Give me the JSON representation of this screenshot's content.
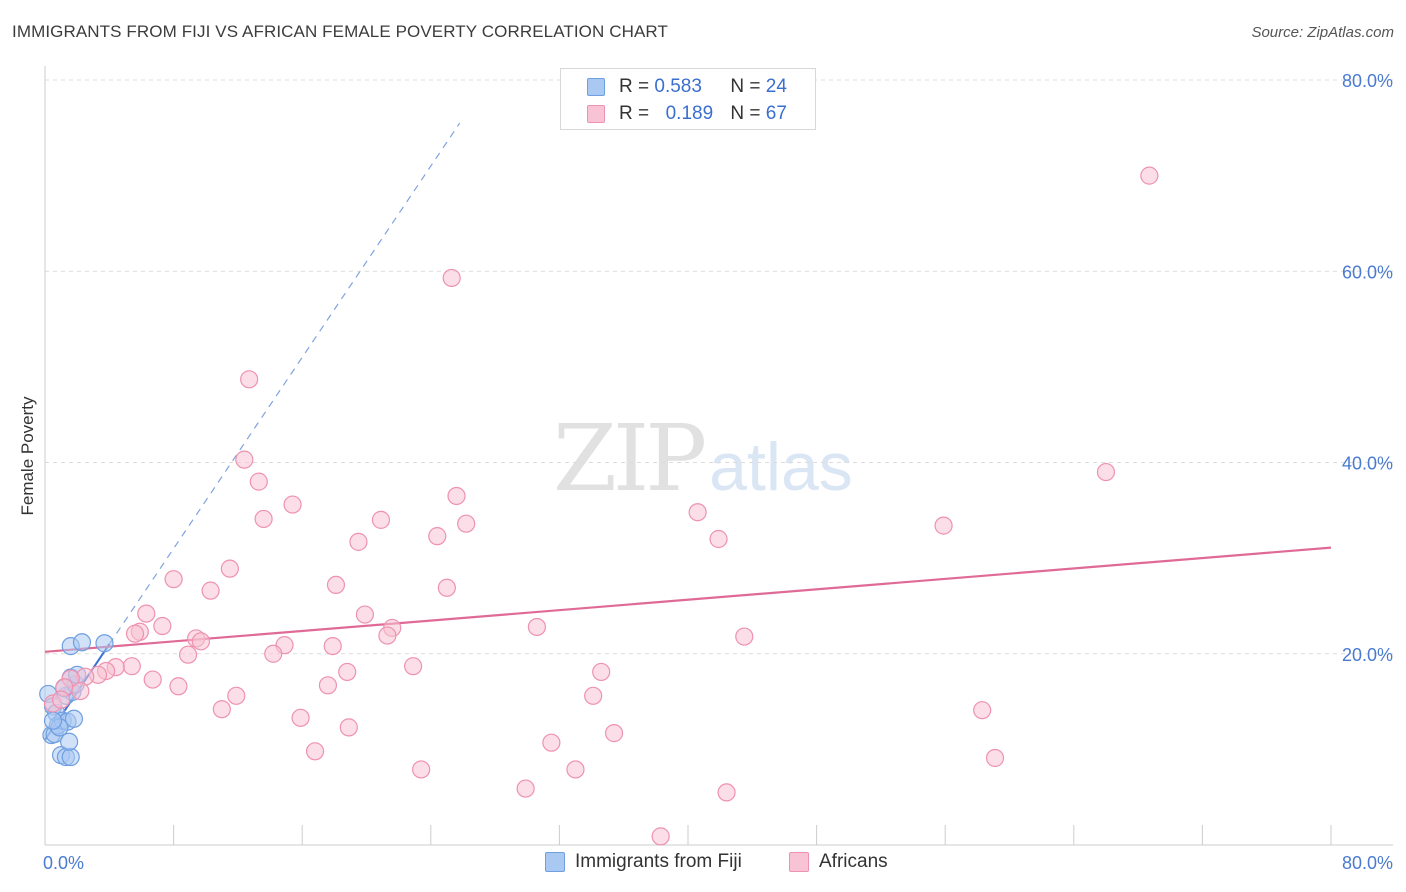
{
  "title": "IMMIGRANTS FROM FIJI VS AFRICAN FEMALE POVERTY CORRELATION CHART",
  "source": "Source: ZipAtlas.com",
  "watermark": {
    "zip": "ZIP",
    "atlas": "atlas"
  },
  "legend": {
    "rows": [
      {
        "r_label": "R =",
        "r_value": "0.583",
        "n_label": "N =",
        "n_value": "24",
        "color": "#a9c8f2",
        "border": "#6f9fe0"
      },
      {
        "r_label": "R =",
        "r_value": "0.189",
        "n_label": "N =",
        "n_value": "67",
        "color": "#f8c3d4",
        "border": "#ee92b0"
      }
    ]
  },
  "bottom_legend": [
    {
      "label": "Immigrants from Fiji",
      "color": "#a9c8f2",
      "border": "#6f9fe0"
    },
    {
      "label": "Africans",
      "color": "#f8c3d4",
      "border": "#ee92b0"
    }
  ],
  "chart_data": {
    "type": "scatter",
    "title": "IMMIGRANTS FROM FIJI VS AFRICAN FEMALE POVERTY CORRELATION CHART",
    "xlabel": "",
    "ylabel": "Female Poverty",
    "xlim": [
      0,
      80
    ],
    "ylim": [
      0,
      80
    ],
    "x_tick_labels": [
      "0.0%",
      "80.0%"
    ],
    "y_ticks": [
      20,
      40,
      60,
      80
    ],
    "y_tick_labels": [
      "20.0%",
      "40.0%",
      "60.0%",
      "80.0%"
    ],
    "grid": "horizontal dashed",
    "legend_position": "top-center",
    "series": [
      {
        "name": "Immigrants from Fiji",
        "color": "#6f9fe0",
        "fill": "#a9c8f2",
        "trend_color": "#3a6fd6",
        "trend": {
          "x1": 0,
          "y1": 11.0,
          "x2": 4.0,
          "y2": 21.0,
          "dashed_to_x": 25.8
        },
        "points": [
          [
            0.2,
            15.8
          ],
          [
            0.5,
            14.5
          ],
          [
            0.7,
            13.8
          ],
          [
            0.4,
            11.5
          ],
          [
            0.6,
            11.6
          ],
          [
            0.8,
            12.5
          ],
          [
            1.1,
            13.0
          ],
          [
            1.4,
            12.9
          ],
          [
            1.0,
            9.4
          ],
          [
            1.3,
            9.2
          ],
          [
            1.6,
            9.2
          ],
          [
            1.5,
            10.8
          ],
          [
            1.8,
            13.2
          ],
          [
            1.3,
            15.6
          ],
          [
            1.7,
            16.0
          ],
          [
            1.2,
            16.4
          ],
          [
            1.9,
            16.8
          ],
          [
            1.6,
            17.5
          ],
          [
            2.0,
            17.8
          ],
          [
            1.6,
            20.8
          ],
          [
            2.3,
            21.2
          ],
          [
            3.7,
            21.1
          ],
          [
            0.9,
            12.3
          ],
          [
            0.5,
            13.0
          ]
        ]
      },
      {
        "name": "Africans",
        "color": "#ee92b0",
        "fill": "#f8c3d4",
        "trend_color": "#e06a96",
        "trend": {
          "x1": 0,
          "y1": 20.2,
          "x2": 80,
          "y2": 31.1
        },
        "points": [
          [
            68.7,
            70.0
          ],
          [
            25.3,
            59.3
          ],
          [
            12.7,
            48.7
          ],
          [
            12.4,
            40.3
          ],
          [
            13.3,
            38.0
          ],
          [
            15.4,
            35.6
          ],
          [
            13.6,
            34.1
          ],
          [
            20.9,
            34.0
          ],
          [
            19.5,
            31.7
          ],
          [
            25.6,
            36.5
          ],
          [
            26.2,
            33.6
          ],
          [
            24.4,
            32.3
          ],
          [
            40.6,
            34.8
          ],
          [
            41.9,
            32.0
          ],
          [
            55.9,
            33.4
          ],
          [
            66.0,
            39.0
          ],
          [
            8.0,
            27.8
          ],
          [
            11.5,
            28.9
          ],
          [
            10.3,
            26.6
          ],
          [
            18.1,
            27.2
          ],
          [
            25.0,
            26.9
          ],
          [
            6.3,
            24.2
          ],
          [
            7.3,
            22.9
          ],
          [
            5.9,
            22.3
          ],
          [
            5.6,
            22.1
          ],
          [
            9.4,
            21.6
          ],
          [
            9.7,
            21.3
          ],
          [
            19.9,
            24.1
          ],
          [
            21.6,
            22.7
          ],
          [
            21.3,
            21.9
          ],
          [
            14.9,
            20.9
          ],
          [
            14.2,
            20.0
          ],
          [
            17.9,
            20.8
          ],
          [
            8.9,
            19.9
          ],
          [
            30.6,
            22.8
          ],
          [
            43.5,
            21.8
          ],
          [
            5.4,
            18.7
          ],
          [
            4.4,
            18.6
          ],
          [
            3.8,
            18.2
          ],
          [
            3.3,
            17.8
          ],
          [
            2.5,
            17.6
          ],
          [
            1.6,
            17.4
          ],
          [
            1.2,
            16.5
          ],
          [
            6.7,
            17.3
          ],
          [
            8.3,
            16.6
          ],
          [
            11.9,
            15.6
          ],
          [
            11.0,
            14.2
          ],
          [
            17.6,
            16.7
          ],
          [
            18.8,
            18.1
          ],
          [
            22.9,
            18.7
          ],
          [
            34.6,
            18.1
          ],
          [
            34.1,
            15.6
          ],
          [
            15.9,
            13.3
          ],
          [
            18.9,
            12.3
          ],
          [
            31.5,
            10.7
          ],
          [
            35.4,
            11.7
          ],
          [
            58.3,
            14.1
          ],
          [
            59.1,
            9.1
          ],
          [
            16.8,
            9.8
          ],
          [
            23.4,
            7.9
          ],
          [
            33.0,
            7.9
          ],
          [
            29.9,
            5.9
          ],
          [
            42.4,
            5.5
          ],
          [
            38.3,
            0.9
          ],
          [
            0.5,
            14.8
          ],
          [
            1.0,
            15.2
          ],
          [
            2.2,
            16.1
          ]
        ]
      }
    ]
  }
}
